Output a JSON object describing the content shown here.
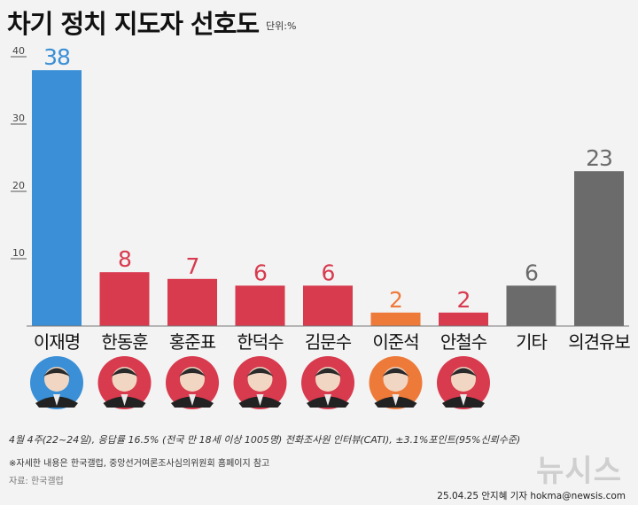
{
  "title": "차기 정치 지도자 선호도",
  "unit_label": "단위:%",
  "chart_data": {
    "type": "bar",
    "categories": [
      "이재명",
      "한동훈",
      "홍준표",
      "한덕수",
      "김문수",
      "이준석",
      "안철수",
      "기타",
      "의견유보"
    ],
    "values": [
      38,
      8,
      7,
      6,
      6,
      2,
      2,
      6,
      23
    ],
    "value_labels": [
      "38",
      "8",
      "7",
      "6",
      "6",
      "2",
      "2",
      "6",
      "23"
    ],
    "bar_colors": [
      "#3a8fd6",
      "#d83a4e",
      "#d83a4e",
      "#d83a4e",
      "#d83a4e",
      "#ee7a3a",
      "#d83a4e",
      "#6b6b6b",
      "#6b6b6b"
    ],
    "portrait_ring_colors": [
      "#3a8fd6",
      "#d83a4e",
      "#d83a4e",
      "#d83a4e",
      "#d83a4e",
      "#ee7a3a",
      "#d83a4e",
      null,
      null
    ],
    "y_ticks": [
      10,
      20,
      30,
      40
    ],
    "ylim": [
      0,
      40
    ],
    "grid": false
  },
  "notes": {
    "survey": "4월 4주(22~24일), 응답률 16.5% (전국 만 18세 이상 1005명) 전화조사원 인터뷰(CATI), ±3.1%포인트(95%신뢰수준)",
    "detail": "※자세한 내용은 한국갤럽, 중앙선거여론조사심의위원회 홈페이지 참고",
    "source": "자료: 한국갤럽"
  },
  "watermark": "뉴시스",
  "byline": "25.04.25 안지혜 기자 hokma@newsis.com"
}
